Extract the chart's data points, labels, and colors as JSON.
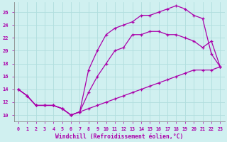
{
  "bg_color": "#d0f0f0",
  "grid_color": "#b0dede",
  "line_color": "#aa00aa",
  "xlabel": "Windchill (Refroidissement éolien,°C)",
  "xlim": [
    -0.5,
    23.5
  ],
  "ylim": [
    9.0,
    27.5
  ],
  "xticks": [
    0,
    1,
    2,
    3,
    4,
    5,
    6,
    7,
    8,
    9,
    10,
    11,
    12,
    13,
    14,
    15,
    16,
    17,
    18,
    19,
    20,
    21,
    22,
    23
  ],
  "yticks": [
    10,
    12,
    14,
    16,
    18,
    20,
    22,
    24,
    26
  ],
  "line_bottom_x": [
    0,
    1,
    2,
    3,
    4,
    5,
    6,
    7,
    8,
    9,
    10,
    11,
    12,
    13,
    14,
    15,
    16,
    17,
    18,
    19,
    20,
    21,
    22,
    23
  ],
  "line_bottom_y": [
    14.0,
    13.0,
    11.5,
    11.5,
    11.5,
    11.0,
    10.0,
    10.5,
    11.0,
    11.5,
    12.0,
    12.5,
    13.0,
    13.5,
    14.0,
    14.5,
    15.0,
    15.5,
    16.0,
    16.5,
    17.0,
    17.0,
    17.0,
    17.5
  ],
  "line_mid_x": [
    0,
    1,
    2,
    3,
    4,
    5,
    6,
    7,
    8,
    9,
    10,
    11,
    12,
    13,
    14,
    15,
    16,
    17,
    18,
    19,
    20,
    21,
    22,
    23
  ],
  "line_mid_y": [
    14.0,
    13.0,
    11.5,
    11.5,
    11.5,
    11.0,
    10.0,
    10.5,
    13.5,
    16.0,
    18.0,
    20.0,
    20.5,
    22.5,
    22.5,
    23.0,
    23.0,
    22.5,
    22.5,
    22.0,
    21.5,
    20.5,
    21.5,
    17.5
  ],
  "line_top_x": [
    0,
    1,
    2,
    3,
    4,
    5,
    6,
    7,
    8,
    9,
    10,
    11,
    12,
    13,
    14,
    15,
    16,
    17,
    18,
    19,
    20,
    21,
    22,
    23
  ],
  "line_top_y": [
    14.0,
    13.0,
    11.5,
    11.5,
    11.5,
    11.0,
    10.0,
    10.5,
    17.0,
    20.0,
    22.5,
    23.5,
    24.0,
    24.5,
    25.5,
    25.5,
    26.0,
    26.5,
    27.0,
    26.5,
    25.5,
    25.0,
    19.5,
    17.5
  ]
}
